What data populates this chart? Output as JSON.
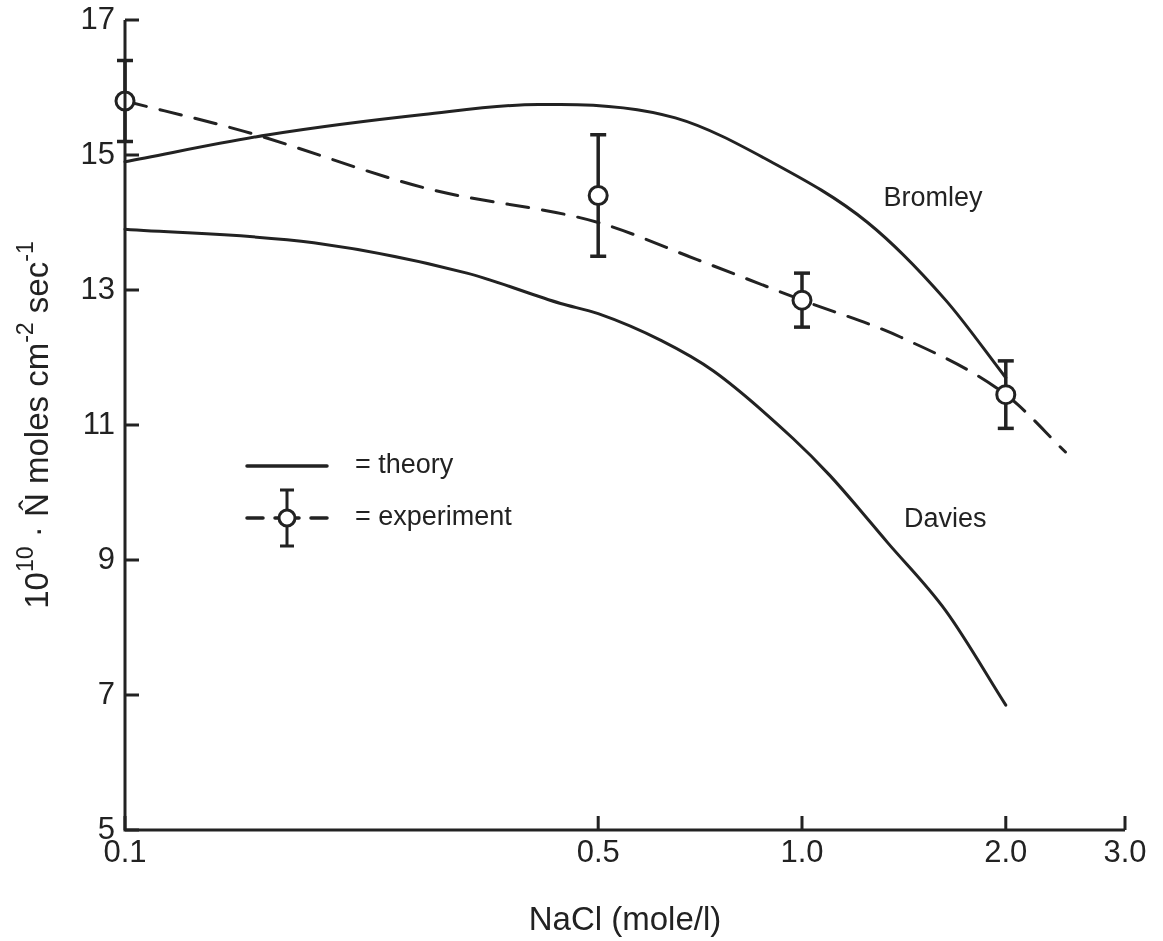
{
  "chart_data": {
    "type": "line",
    "xlabel": "NaCl (mole/l)",
    "ylabel": "10$^{10}$ · N̂ moles cm$^{-2}$ sec$^{-1}$",
    "log": "x",
    "xlim": [
      0.1,
      3.0
    ],
    "xticks": [
      0.1,
      0.5,
      {
        "value": 1,
        "label": "1.0"
      },
      {
        "value": 2,
        "label": "2.0"
      },
      {
        "value": 3,
        "label": "3.0"
      }
    ],
    "ylim": [
      5,
      17
    ],
    "yticks": [
      5,
      7,
      9,
      11,
      13,
      15,
      17
    ],
    "grid": false,
    "annotations": [
      "= theory",
      "= experiment"
    ],
    "series": [
      {
        "name": "Bromley",
        "color": "#222222",
        "line_style": "solid",
        "marker": "none",
        "x": [
          0.1,
          0.163,
          0.276,
          0.408,
          0.44,
          0.65,
          0.9,
          1.25,
          1.63,
          2.0
        ],
        "values": [
          14.9,
          15.3,
          15.6,
          15.75,
          15.75,
          15.55,
          14.9,
          14.0,
          12.85,
          11.7
        ]
      },
      {
        "name": "Davies",
        "color": "#222222",
        "line_style": "solid",
        "marker": "none",
        "x": [
          0.1,
          0.19,
          0.32,
          0.44,
          0.5,
          0.62,
          0.74,
          0.97,
          1.1,
          1.34,
          1.63,
          2.0
        ],
        "values": [
          13.9,
          13.7,
          13.25,
          12.8,
          12.65,
          12.25,
          11.8,
          10.8,
          10.25,
          9.25,
          8.25,
          6.85
        ]
      },
      {
        "color": "#222222",
        "line_style": "dashed",
        "marker": "none",
        "x": [
          0.1,
          0.15,
          0.28,
          0.5,
          0.7,
          1.0,
          1.4,
          2.0,
          2.45
        ],
        "values": [
          15.8,
          15.35,
          14.5,
          14.0,
          13.45,
          12.85,
          12.3,
          11.45,
          10.6
        ]
      },
      {
        "type": "scatter",
        "color": "#222222",
        "marker": "circle",
        "x": [
          0.1,
          0.5,
          1.0,
          2.0
        ],
        "values": [
          15.8,
          14.4,
          12.85,
          11.45
        ],
        "errors": [
          0.6,
          0.9,
          0.4,
          0.5
        ]
      }
    ]
  }
}
